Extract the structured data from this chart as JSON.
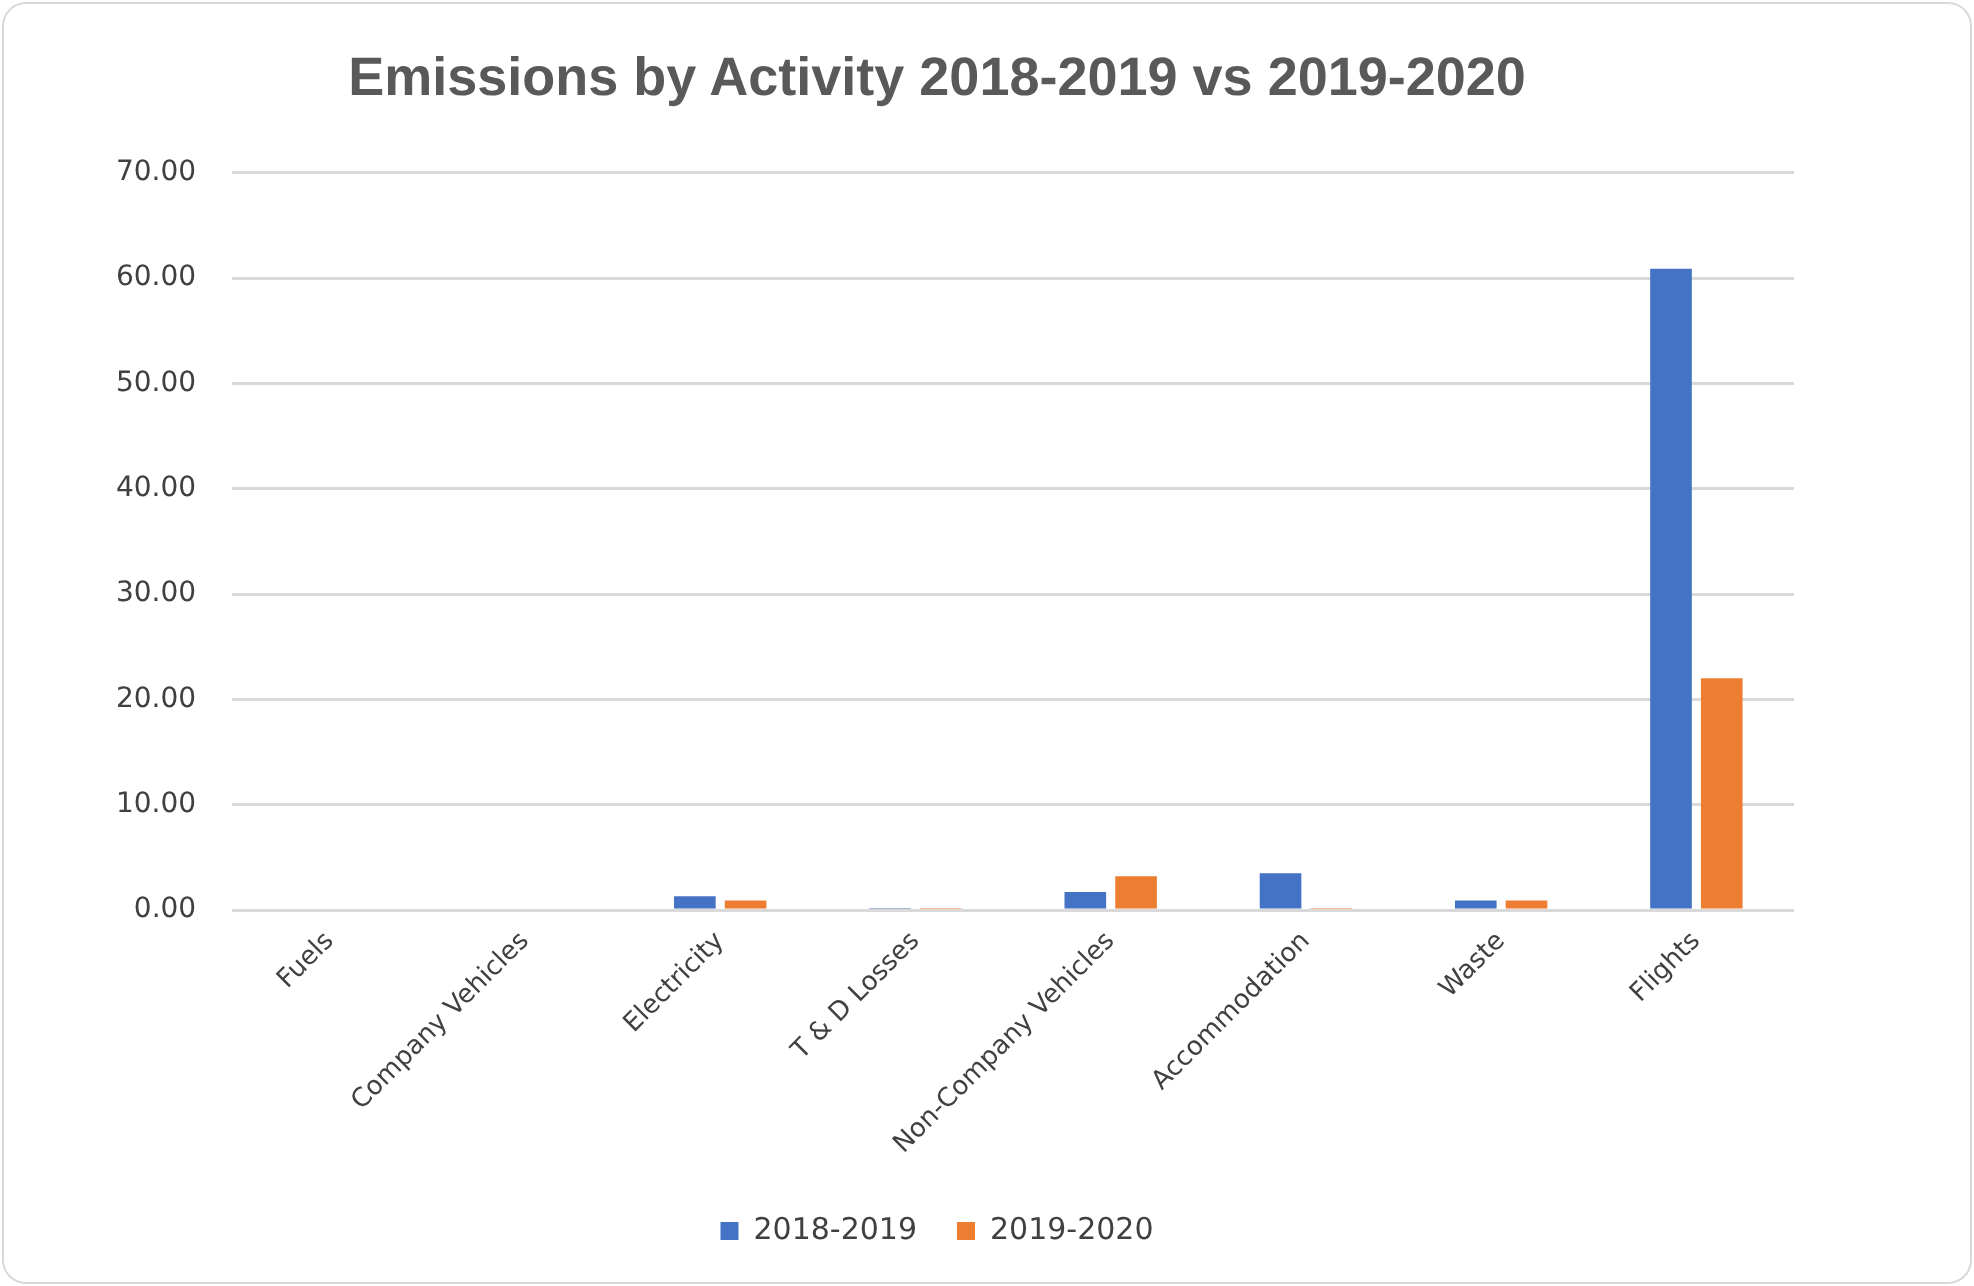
{
  "chart_data": {
    "type": "bar",
    "title": "Emissions by Activity 2018-2019 vs 2019-2020",
    "categories": [
      "Fuels",
      "Company Vehicles",
      "Electricity",
      "T & D Losses",
      "Non-Company Vehicles",
      "Accommodation",
      "Waste",
      "Flights"
    ],
    "series": [
      {
        "name": "2018-2019",
        "color": "#4472c4",
        "values": [
          0,
          0,
          1.3,
          0.2,
          1.7,
          3.5,
          0.9,
          60.9
        ]
      },
      {
        "name": "2019-2020",
        "color": "#ed7d31",
        "values": [
          0,
          0,
          0.9,
          0.2,
          3.2,
          0.2,
          0.9,
          22.0
        ]
      }
    ],
    "ylim": [
      0,
      70
    ],
    "yticks": [
      {
        "value": 0,
        "label": "0.00"
      },
      {
        "value": 10,
        "label": "10.00"
      },
      {
        "value": 20,
        "label": "20.00"
      },
      {
        "value": 30,
        "label": "30.00"
      },
      {
        "value": 40,
        "label": "40.00"
      },
      {
        "value": 50,
        "label": "50.00"
      },
      {
        "value": 60,
        "label": "60.00"
      },
      {
        "value": 70,
        "label": "70.00"
      }
    ],
    "grid": "y",
    "legend": "bottom"
  }
}
